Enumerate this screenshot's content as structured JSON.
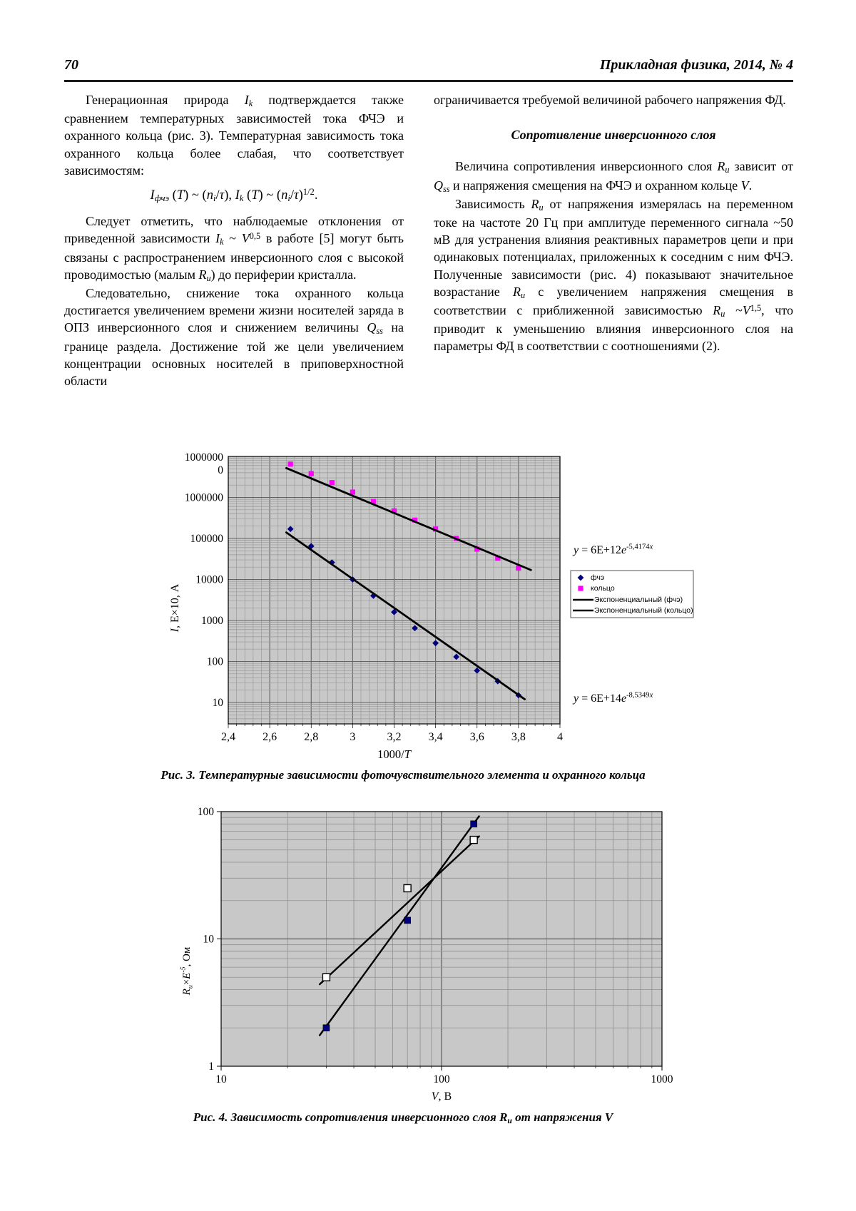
{
  "page": {
    "number": "70",
    "journal": "Прикладная физика, 2014, № 4"
  },
  "columns": {
    "left": {
      "p1": [
        [
          "Генерационная природа ",
          ""
        ],
        [
          "I",
          "i"
        ],
        [
          "k",
          "si"
        ],
        [
          " подтверждается также сравнением температурных зависимостей тока ФЧЭ и охранного кольца (рис. 3). Температурная зависимость тока охранного кольца более слабая, что соответствует зависимостям:",
          ""
        ]
      ],
      "formula": [
        [
          "I",
          "i"
        ],
        [
          "фчэ",
          "si"
        ],
        [
          " (",
          ""
        ],
        [
          "T",
          "i"
        ],
        [
          ") ~ (",
          ""
        ],
        [
          "n",
          "i"
        ],
        [
          "i",
          "si"
        ],
        [
          "/",
          ""
        ],
        [
          "τ",
          "i"
        ],
        [
          "), ",
          ""
        ],
        [
          "I",
          "i"
        ],
        [
          "k",
          "si"
        ],
        [
          " (",
          ""
        ],
        [
          "T",
          "i"
        ],
        [
          ") ~ (",
          ""
        ],
        [
          "n",
          "i"
        ],
        [
          "i",
          "si"
        ],
        [
          "/",
          ""
        ],
        [
          "τ",
          "i"
        ],
        [
          ")",
          ""
        ],
        [
          "1/2",
          "p"
        ],
        [
          ".",
          ""
        ]
      ],
      "p2": [
        [
          "Следует отметить, что наблюдаемые отклонения от приведенной зависимости ",
          ""
        ],
        [
          "I",
          "i"
        ],
        [
          "k",
          "si"
        ],
        [
          " ~ ",
          ""
        ],
        [
          "V",
          "i"
        ],
        [
          "0,5",
          "p"
        ],
        [
          " в работе [5] могут быть связаны с распространением инверсионного слоя с высокой проводимостью (малым ",
          ""
        ],
        [
          "R",
          "i"
        ],
        [
          "и",
          "si"
        ],
        [
          ") до периферии кристалла.",
          ""
        ]
      ],
      "p3": [
        [
          "Следовательно, снижение тока охранного кольца достигается увеличением времени жизни носителей заряда в ОПЗ инверсионного слоя и снижением величины ",
          ""
        ],
        [
          "Q",
          "i"
        ],
        [
          "ss",
          "si"
        ],
        [
          " на границе раздела. Достижение той же цели увеличением концентрации основных носителей в приповерхностной области",
          ""
        ]
      ]
    },
    "right": {
      "p1": [
        [
          "ограничивается требуемой величиной рабочего напряжения ФД.",
          ""
        ]
      ],
      "heading": "Сопротивление инверсионного слоя",
      "p2": [
        [
          "Величина сопротивления инверсионного слоя ",
          ""
        ],
        [
          "R",
          "i"
        ],
        [
          "и",
          "si"
        ],
        [
          " зависит от ",
          ""
        ],
        [
          "Q",
          "i"
        ],
        [
          "ss",
          "si"
        ],
        [
          " и напряжения смещения на ФЧЭ и охранном кольце ",
          ""
        ],
        [
          "V",
          "i"
        ],
        [
          ".",
          ""
        ]
      ],
      "p3": [
        [
          "Зависимость ",
          ""
        ],
        [
          "R",
          "i"
        ],
        [
          "и",
          "si"
        ],
        [
          " от напряжения измерялась на переменном токе на частоте 20 Гц при амплитуде переменного сигнала ~50 мВ для устранения влияния реактивных параметров цепи и при одинаковых потенциалах, приложенных к соседним с ним ФЧЭ. Полученные зависимости (рис. 4) показывают значительное возрастание ",
          ""
        ],
        [
          "R",
          "i"
        ],
        [
          "и",
          "si"
        ],
        [
          " с увеличением напряжения смещения в соответствии с приближенной зависимостью ",
          ""
        ],
        [
          "R",
          "i"
        ],
        [
          "и",
          "si"
        ],
        [
          " ~",
          ""
        ],
        [
          "V",
          "i"
        ],
        [
          "1,5",
          "p"
        ],
        [
          ", что приводит к уменьшению влияния инверсионного слоя на параметры ФД в соответствии с соотношениями (2).",
          ""
        ]
      ]
    }
  },
  "fig3": {
    "caption": [
      [
        "Рис. 3. Температурные зависимости фоточувствительного элемента и охранного кольца",
        ""
      ]
    ]
  },
  "fig4": {
    "caption": [
      [
        "Рис. 4. Зависимость сопротивления инверсионного слоя ",
        ""
      ],
      [
        "R",
        "i"
      ],
      [
        "и",
        "si"
      ],
      [
        " от напряжения ",
        ""
      ],
      [
        "V",
        "i"
      ]
    ]
  },
  "chart_data": [
    {
      "type": "scatter",
      "title": "",
      "xlabel": "1000/T",
      "xlabel_runs": [
        [
          "1000/",
          ""
        ],
        [
          "T",
          "i"
        ]
      ],
      "ylabel": "I, E×10, А",
      "ylabel_runs": [
        [
          "I",
          "i"
        ],
        [
          ", E×10, А",
          ""
        ]
      ],
      "x_scale": "linear",
      "y_scale": "log",
      "xlim": [
        2.4,
        4.0
      ],
      "ylim": [
        10,
        10000000
      ],
      "x_ticks": [
        2.4,
        2.6,
        2.8,
        3.0,
        3.2,
        3.4,
        3.6,
        3.8,
        4.0
      ],
      "x_tick_labels": [
        "2,4",
        "2,6",
        "2,8",
        "3",
        "3,2",
        "3,4",
        "3,6",
        "3,8",
        "4"
      ],
      "y_ticks": [
        10000000,
        1000000,
        100000,
        10000,
        1000,
        100,
        10
      ],
      "y_tick_labels": [
        [
          "1000000",
          "0"
        ],
        "1000000",
        "100000",
        "10000",
        "1000",
        "100",
        "10"
      ],
      "grid": true,
      "plot_bg": "#c8c8c8",
      "legend_position": "right",
      "series": [
        {
          "name": "фчэ",
          "marker": "diamond",
          "color": "#000080",
          "x": [
            2.7,
            2.8,
            2.9,
            3.0,
            3.1,
            3.2,
            3.3,
            3.4,
            3.5,
            3.6,
            3.7,
            3.8
          ],
          "y": [
            170000,
            65000,
            26000,
            10000,
            4000,
            1600,
            650,
            280,
            130,
            60,
            33,
            15
          ]
        },
        {
          "name": "кольцо",
          "marker": "square",
          "color": "#FF00FF",
          "x": [
            2.7,
            2.8,
            2.9,
            3.0,
            3.1,
            3.2,
            3.3,
            3.4,
            3.5,
            3.6,
            3.7,
            3.8
          ],
          "y": [
            6500000,
            3800000,
            2300000,
            1350000,
            800000,
            470000,
            280000,
            170000,
            100000,
            55000,
            33000,
            19000
          ]
        }
      ],
      "trendlines": [
        {
          "name": "Экспоненциальный (фчэ)",
          "color": "#000000",
          "equation": "y = 6E+14e^(-8,5349x)",
          "equation_runs": [
            [
              "y",
              "i"
            ],
            [
              " = 6E+14",
              ""
            ],
            [
              "e",
              "i"
            ],
            [
              "-8,5349",
              "p"
            ],
            [
              "x",
              "pi"
            ]
          ],
          "x1": 2.68,
          "y1": 140000,
          "x2": 3.83,
          "y2": 12
        },
        {
          "name": "Экспоненциальный (кольцо)",
          "color": "#000000",
          "equation": "y = 6E+12e^(-5,4174x)",
          "equation_runs": [
            [
              "y",
              "i"
            ],
            [
              " = 6E+12",
              ""
            ],
            [
              "e",
              "i"
            ],
            [
              "-5,4174",
              "p"
            ],
            [
              "x",
              "pi"
            ]
          ],
          "x1": 2.68,
          "y1": 5200000,
          "x2": 3.86,
          "y2": 17000
        }
      ],
      "legend": [
        "фчэ",
        "кольцо",
        "Экспоненциальный (фчэ)",
        "Экспоненциальный (кольцо)"
      ]
    },
    {
      "type": "scatter",
      "title": "",
      "xlabel": "V, В",
      "xlabel_runs": [
        [
          "V",
          "i"
        ],
        [
          ", В",
          ""
        ]
      ],
      "ylabel": "Rи×E-5, Ом",
      "ylabel_runs": [
        [
          "R",
          "i"
        ],
        [
          "и",
          "si"
        ],
        [
          "×",
          ""
        ],
        [
          "E",
          "i"
        ],
        [
          "-5",
          "pi"
        ],
        [
          ", Ом",
          ""
        ]
      ],
      "x_scale": "log",
      "y_scale": "log",
      "xlim": [
        10,
        1000
      ],
      "ylim": [
        1,
        100
      ],
      "x_ticks": [
        10,
        100,
        1000
      ],
      "x_tick_labels": [
        "10",
        "100",
        "1000"
      ],
      "y_ticks": [
        100,
        10,
        1
      ],
      "y_tick_labels": [
        "100",
        "10",
        "1"
      ],
      "grid": true,
      "plot_bg": "#c8c8c8",
      "series": [
        {
          "name": "закрашенные квадраты",
          "marker": "square-filled",
          "color": "#000080",
          "x": [
            30,
            70,
            140
          ],
          "y": [
            2,
            14,
            80
          ]
        },
        {
          "name": "полые квадраты",
          "marker": "square-open",
          "color": "#ffffff",
          "x": [
            30,
            70,
            140
          ],
          "y": [
            5,
            25,
            60
          ]
        }
      ],
      "trendlines": [
        {
          "name": "линия (закрашенные)",
          "color": "#000000",
          "x1": 28,
          "y1": 1.75,
          "x2": 148,
          "y2": 92
        },
        {
          "name": "линия (полые)",
          "color": "#000000",
          "x1": 28,
          "y1": 4.4,
          "x2": 148,
          "y2": 64
        }
      ]
    }
  ]
}
